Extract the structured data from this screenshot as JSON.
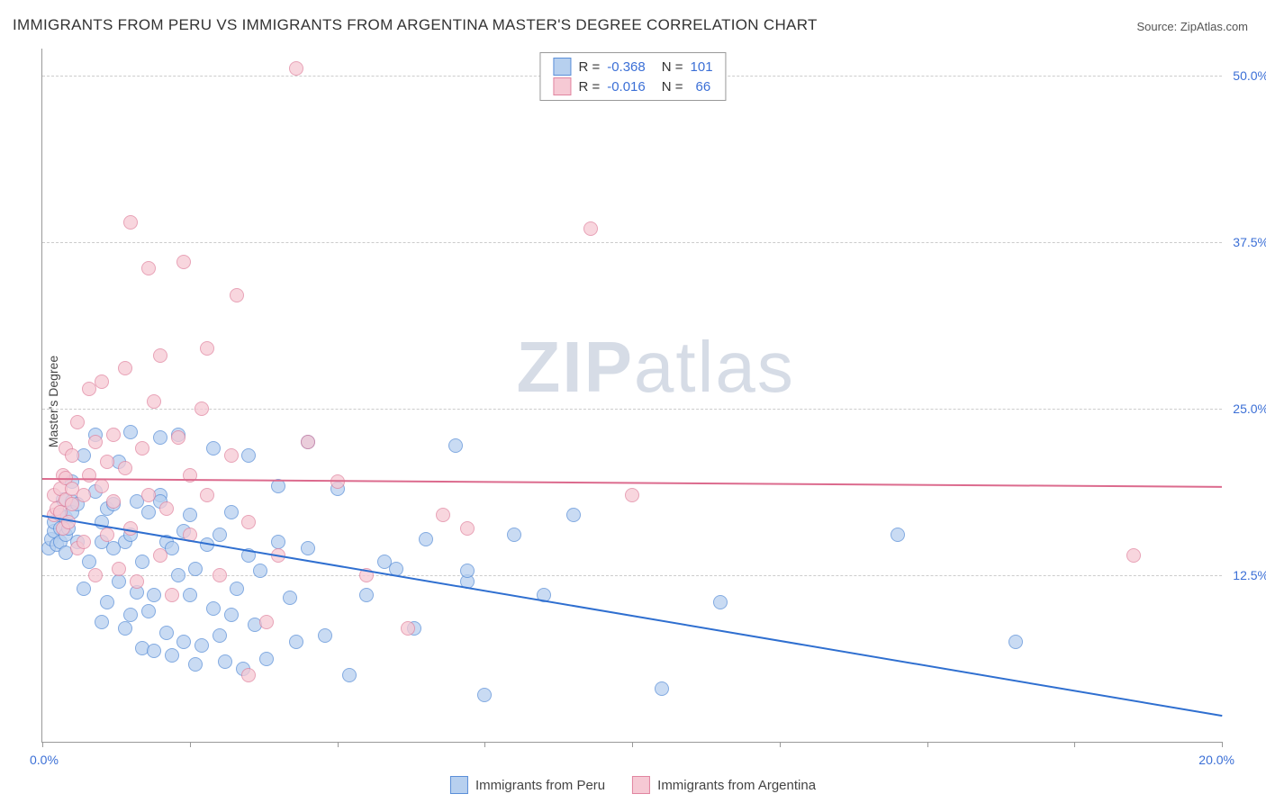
{
  "title": "IMMIGRANTS FROM PERU VS IMMIGRANTS FROM ARGENTINA MASTER'S DEGREE CORRELATION CHART",
  "source": "Source: ZipAtlas.com",
  "ylabel": "Master's Degree",
  "watermark_zip": "ZIP",
  "watermark_atlas": "atlas",
  "chart": {
    "type": "scatter",
    "xlim": [
      0,
      20
    ],
    "ylim": [
      0,
      52
    ],
    "x_axis_format": "percent",
    "y_axis_format": "percent",
    "xtick_left": "0.0%",
    "xtick_right": "20.0%",
    "xtick_marks": [
      0,
      2.5,
      5,
      7.5,
      10,
      12.5,
      15,
      17.5,
      20
    ],
    "yticks": [
      {
        "value": 12.5,
        "label": "12.5%"
      },
      {
        "value": 25.0,
        "label": "25.0%"
      },
      {
        "value": 37.5,
        "label": "37.5%"
      },
      {
        "value": 50.0,
        "label": "50.0%"
      }
    ],
    "grid_color": "#cccccc",
    "background_color": "#ffffff",
    "marker_radius": 7,
    "series": [
      {
        "name": "Immigrants from Peru",
        "fill": "#b7d0ef",
        "stroke": "#5a8fd8",
        "line_color": "#2f6fd0",
        "R": "-0.368",
        "N": "101",
        "trend": {
          "x1": 0,
          "y1": 17.0,
          "x2": 20,
          "y2": 2.0
        },
        "points": [
          [
            0.1,
            14.5
          ],
          [
            0.15,
            15.2
          ],
          [
            0.2,
            15.8
          ],
          [
            0.2,
            16.5
          ],
          [
            0.25,
            14.8
          ],
          [
            0.3,
            15.0
          ],
          [
            0.3,
            16.0
          ],
          [
            0.3,
            17.0
          ],
          [
            0.35,
            18.2
          ],
          [
            0.4,
            16.8
          ],
          [
            0.4,
            15.5
          ],
          [
            0.4,
            14.2
          ],
          [
            0.45,
            16.0
          ],
          [
            0.5,
            18.0
          ],
          [
            0.5,
            19.5
          ],
          [
            0.5,
            17.2
          ],
          [
            0.6,
            17.8
          ],
          [
            0.6,
            15.0
          ],
          [
            0.7,
            11.5
          ],
          [
            0.7,
            21.5
          ],
          [
            0.8,
            13.5
          ],
          [
            0.9,
            18.8
          ],
          [
            0.9,
            23.0
          ],
          [
            1.0,
            16.5
          ],
          [
            1.0,
            15.0
          ],
          [
            1.0,
            9.0
          ],
          [
            1.1,
            17.5
          ],
          [
            1.1,
            10.5
          ],
          [
            1.2,
            14.5
          ],
          [
            1.2,
            17.8
          ],
          [
            1.3,
            12.0
          ],
          [
            1.3,
            21.0
          ],
          [
            1.4,
            8.5
          ],
          [
            1.4,
            15.0
          ],
          [
            1.5,
            15.5
          ],
          [
            1.5,
            23.2
          ],
          [
            1.5,
            9.5
          ],
          [
            1.6,
            11.2
          ],
          [
            1.6,
            18.0
          ],
          [
            1.7,
            7.0
          ],
          [
            1.7,
            13.5
          ],
          [
            1.8,
            9.8
          ],
          [
            1.8,
            17.2
          ],
          [
            1.9,
            11.0
          ],
          [
            1.9,
            6.8
          ],
          [
            2.0,
            18.5
          ],
          [
            2.0,
            18.0
          ],
          [
            2.0,
            22.8
          ],
          [
            2.1,
            15.0
          ],
          [
            2.1,
            8.2
          ],
          [
            2.2,
            14.5
          ],
          [
            2.2,
            6.5
          ],
          [
            2.3,
            12.5
          ],
          [
            2.3,
            23.0
          ],
          [
            2.4,
            7.5
          ],
          [
            2.4,
            15.8
          ],
          [
            2.5,
            11.0
          ],
          [
            2.5,
            17.0
          ],
          [
            2.6,
            13.0
          ],
          [
            2.6,
            5.8
          ],
          [
            2.7,
            7.2
          ],
          [
            2.8,
            14.8
          ],
          [
            2.9,
            10.0
          ],
          [
            2.9,
            22.0
          ],
          [
            3.0,
            8.0
          ],
          [
            3.0,
            15.5
          ],
          [
            3.1,
            6.0
          ],
          [
            3.2,
            17.2
          ],
          [
            3.2,
            9.5
          ],
          [
            3.3,
            11.5
          ],
          [
            3.4,
            5.5
          ],
          [
            3.5,
            21.5
          ],
          [
            3.5,
            14.0
          ],
          [
            3.6,
            8.8
          ],
          [
            3.7,
            12.8
          ],
          [
            3.8,
            6.2
          ],
          [
            4.0,
            19.2
          ],
          [
            4.0,
            15.0
          ],
          [
            4.2,
            10.8
          ],
          [
            4.3,
            7.5
          ],
          [
            4.5,
            22.5
          ],
          [
            4.5,
            14.5
          ],
          [
            4.8,
            8.0
          ],
          [
            5.0,
            19.0
          ],
          [
            5.2,
            5.0
          ],
          [
            5.5,
            11.0
          ],
          [
            5.8,
            13.5
          ],
          [
            6.0,
            13.0
          ],
          [
            6.3,
            8.5
          ],
          [
            6.5,
            15.2
          ],
          [
            7.0,
            22.2
          ],
          [
            7.2,
            12.0
          ],
          [
            7.2,
            12.8
          ],
          [
            7.5,
            3.5
          ],
          [
            8.0,
            15.5
          ],
          [
            8.5,
            11.0
          ],
          [
            9.0,
            17.0
          ],
          [
            10.5,
            4.0
          ],
          [
            11.5,
            10.5
          ],
          [
            14.5,
            15.5
          ],
          [
            16.5,
            7.5
          ]
        ]
      },
      {
        "name": "Immigrants from Argentina",
        "fill": "#f6c9d4",
        "stroke": "#e185a0",
        "line_color": "#dc6b8e",
        "R": "-0.016",
        "N": "66",
        "trend": {
          "x1": 0,
          "y1": 19.8,
          "x2": 20,
          "y2": 19.2
        },
        "points": [
          [
            0.2,
            17.0
          ],
          [
            0.2,
            18.5
          ],
          [
            0.25,
            17.5
          ],
          [
            0.3,
            19.0
          ],
          [
            0.3,
            17.2
          ],
          [
            0.35,
            20.0
          ],
          [
            0.35,
            16.0
          ],
          [
            0.4,
            19.8
          ],
          [
            0.4,
            22.0
          ],
          [
            0.4,
            18.2
          ],
          [
            0.45,
            16.5
          ],
          [
            0.5,
            21.5
          ],
          [
            0.5,
            19.0
          ],
          [
            0.5,
            17.8
          ],
          [
            0.6,
            14.5
          ],
          [
            0.6,
            24.0
          ],
          [
            0.7,
            15.0
          ],
          [
            0.7,
            18.5
          ],
          [
            0.8,
            26.5
          ],
          [
            0.8,
            20.0
          ],
          [
            0.9,
            22.5
          ],
          [
            0.9,
            12.5
          ],
          [
            1.0,
            19.2
          ],
          [
            1.0,
            27.0
          ],
          [
            1.1,
            15.5
          ],
          [
            1.1,
            21.0
          ],
          [
            1.2,
            18.0
          ],
          [
            1.2,
            23.0
          ],
          [
            1.3,
            13.0
          ],
          [
            1.4,
            28.0
          ],
          [
            1.4,
            20.5
          ],
          [
            1.5,
            16.0
          ],
          [
            1.5,
            39.0
          ],
          [
            1.6,
            12.0
          ],
          [
            1.7,
            22.0
          ],
          [
            1.8,
            18.5
          ],
          [
            1.8,
            35.5
          ],
          [
            1.9,
            25.5
          ],
          [
            2.0,
            14.0
          ],
          [
            2.0,
            29.0
          ],
          [
            2.1,
            17.5
          ],
          [
            2.2,
            11.0
          ],
          [
            2.3,
            22.8
          ],
          [
            2.4,
            36.0
          ],
          [
            2.5,
            20.0
          ],
          [
            2.5,
            15.5
          ],
          [
            2.7,
            25.0
          ],
          [
            2.8,
            18.5
          ],
          [
            2.8,
            29.5
          ],
          [
            3.0,
            12.5
          ],
          [
            3.2,
            21.5
          ],
          [
            3.3,
            33.5
          ],
          [
            3.5,
            16.5
          ],
          [
            3.5,
            5.0
          ],
          [
            3.8,
            9.0
          ],
          [
            4.0,
            14.0
          ],
          [
            4.3,
            50.5
          ],
          [
            4.5,
            22.5
          ],
          [
            5.0,
            19.5
          ],
          [
            5.5,
            12.5
          ],
          [
            6.2,
            8.5
          ],
          [
            6.8,
            17.0
          ],
          [
            7.2,
            16.0
          ],
          [
            9.3,
            38.5
          ],
          [
            10.0,
            18.5
          ],
          [
            18.5,
            14.0
          ]
        ]
      }
    ]
  },
  "legend_bottom": {
    "series1_label": "Immigrants from Peru",
    "series2_label": "Immigrants from Argentina"
  }
}
